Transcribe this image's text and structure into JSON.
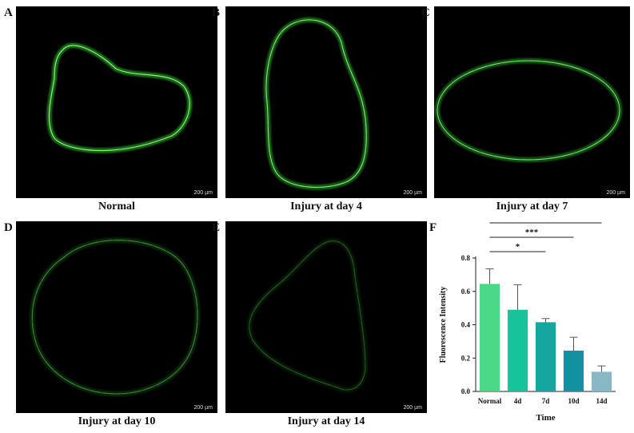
{
  "panels": [
    {
      "letter": "A",
      "caption": "Normal",
      "scale": "200 µm",
      "intensity": 1.0
    },
    {
      "letter": "B",
      "caption": "Injury at day 4",
      "scale": "200 µm",
      "intensity": 0.85
    },
    {
      "letter": "C",
      "caption": "Injury at day 7",
      "scale": "200 µm",
      "intensity": 0.75
    },
    {
      "letter": "D",
      "caption": "Injury at day 10",
      "scale": "200 µm",
      "intensity": 0.35
    },
    {
      "letter": "E",
      "caption": "Injury at day 14",
      "scale": "200 µm",
      "intensity": 0.22
    }
  ],
  "chart_letter": "F",
  "colors": {
    "micro_bg": "#000000",
    "fluor": "#3ad13a"
  },
  "chart_data": {
    "type": "bar",
    "categories": [
      "Normal",
      "4d",
      "7d",
      "10d",
      "14d"
    ],
    "values": [
      0.645,
      0.49,
      0.415,
      0.245,
      0.118
    ],
    "errors": [
      0.09,
      0.15,
      0.022,
      0.08,
      0.035
    ],
    "colors": [
      "#4cd987",
      "#16c39b",
      "#15a6a0",
      "#1490a3",
      "#88b8c4"
    ],
    "xlabel": "Time",
    "ylabel": "Fluorescence Intensity",
    "ylim": [
      0,
      0.8
    ],
    "yticks": [
      "0.0",
      "0.2",
      "0.4",
      "0.6",
      "0.8"
    ],
    "significance": [
      {
        "from": "Normal",
        "to": "7d",
        "label": "*"
      },
      {
        "from": "Normal",
        "to": "10d",
        "label": "***"
      },
      {
        "from": "Normal",
        "to": "14d",
        "label": "****"
      }
    ]
  }
}
